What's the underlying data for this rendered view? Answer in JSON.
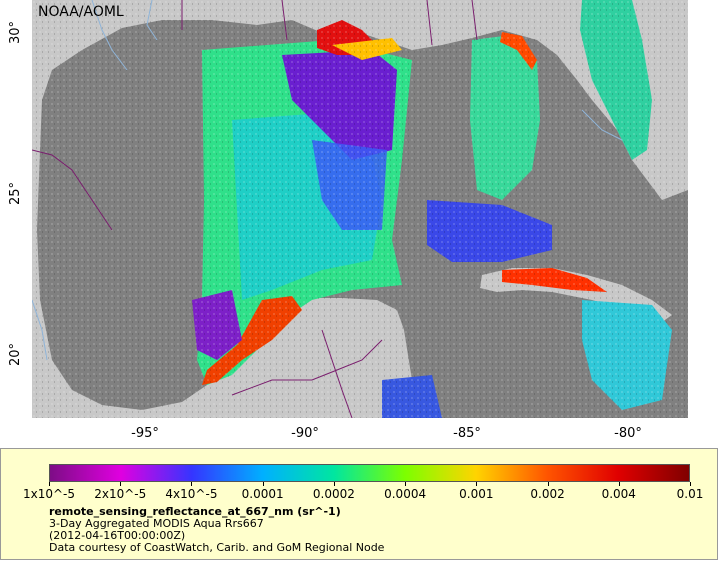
{
  "map": {
    "credit": "NOAA/AOML",
    "lat_ticks": [
      "30°",
      "25°",
      "20°"
    ],
    "lon_ticks": [
      "-95°",
      "-90°",
      "-85°",
      "-80°"
    ],
    "colors": {
      "ocean": "#808080",
      "land": "#c8c8c8",
      "boundary": "#7a1e6e",
      "river": "#8fb4d8"
    }
  },
  "legend": {
    "colorbar_labels": [
      "1x10^-5",
      "2x10^-5",
      "4x10^-5",
      "0.0001",
      "0.0002",
      "0.0004",
      "0.001",
      "0.002",
      "0.004",
      "0.01"
    ],
    "variable": "remote_sensing_reflectance_at_667_nm (sr^-1)",
    "description": "3-Day Aggregated MODIS Aqua Rrs667",
    "time": "(2012-04-16T00:00:00Z)",
    "source": "Data courtesy of CoastWatch, Carib. and GoM Regional Node",
    "gradient": [
      "#7d0d86",
      "#e000e0",
      "#3535ff",
      "#00b0ff",
      "#00e6a0",
      "#7cff00",
      "#ffd400",
      "#ff5500",
      "#e00000",
      "#800000"
    ]
  }
}
